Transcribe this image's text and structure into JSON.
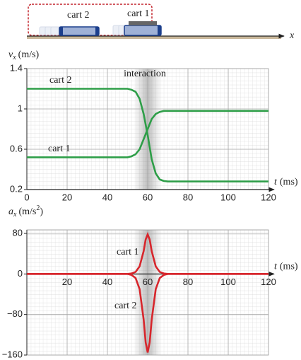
{
  "diagram": {
    "cart_labels": [
      "cart 2",
      "cart 1"
    ],
    "axis_label": "x"
  },
  "chart_data": [
    {
      "type": "line",
      "ylabel": {
        "symbol": "v",
        "subscript": "x",
        "unit": "(m/s)"
      },
      "xlabel": {
        "symbol": "t",
        "unit": "(ms)"
      },
      "annotation": "interaction",
      "shaded_x": [
        53,
        67
      ],
      "xlim": [
        0,
        120
      ],
      "xticks": [
        0,
        20,
        40,
        60,
        80,
        100,
        120
      ],
      "ylim": [
        0.2,
        1.4
      ],
      "yticks": [
        0.2,
        0.6,
        1,
        1.4
      ],
      "grid": true,
      "x": [
        0,
        10,
        20,
        30,
        40,
        50,
        52,
        54,
        56,
        58,
        60,
        62,
        64,
        66,
        68,
        70,
        80,
        90,
        100,
        110,
        120
      ],
      "series": [
        {
          "name": "cart 2",
          "color": "#2e9e48",
          "values": [
            1.2,
            1.2,
            1.2,
            1.2,
            1.2,
            1.2,
            1.19,
            1.17,
            1.1,
            0.95,
            0.74,
            0.5,
            0.36,
            0.3,
            0.285,
            0.28,
            0.28,
            0.28,
            0.28,
            0.28,
            0.28
          ]
        },
        {
          "name": "cart 1",
          "color": "#2e9e48",
          "values": [
            0.52,
            0.52,
            0.52,
            0.52,
            0.52,
            0.52,
            0.53,
            0.55,
            0.6,
            0.7,
            0.8,
            0.9,
            0.95,
            0.97,
            0.98,
            0.98,
            0.98,
            0.98,
            0.98,
            0.98,
            0.98
          ]
        }
      ]
    },
    {
      "type": "line",
      "ylabel": {
        "symbol": "a",
        "subscript": "x",
        "unit": "(m/s",
        "unit_sup": "2",
        "unit_end": ")"
      },
      "xlabel": {
        "symbol": "t",
        "unit": "(ms)"
      },
      "shaded_x": [
        53,
        67
      ],
      "xlim": [
        0,
        120
      ],
      "xticks": [
        20,
        40,
        60,
        80,
        100,
        120
      ],
      "ylim": [
        -160,
        87
      ],
      "yticks": [
        80,
        0,
        {
          "value": -80,
          "label": "−80"
        },
        {
          "value": -160,
          "label": "−160"
        }
      ],
      "grid": true,
      "x": [
        0,
        50,
        52,
        54,
        56,
        58,
        59,
        60,
        61,
        62,
        64,
        66,
        68,
        70,
        120
      ],
      "series": [
        {
          "name": "cart 1",
          "color": "#d7262c",
          "values": [
            0,
            0,
            1,
            4,
            15,
            45,
            68,
            78,
            68,
            45,
            15,
            4,
            1,
            0,
            0
          ]
        },
        {
          "name": "cart 2",
          "color": "#d7262c",
          "values": [
            0,
            0,
            -2,
            -8,
            -30,
            -90,
            -135,
            -155,
            -135,
            -90,
            -30,
            -8,
            -2,
            0,
            0
          ]
        }
      ]
    }
  ]
}
